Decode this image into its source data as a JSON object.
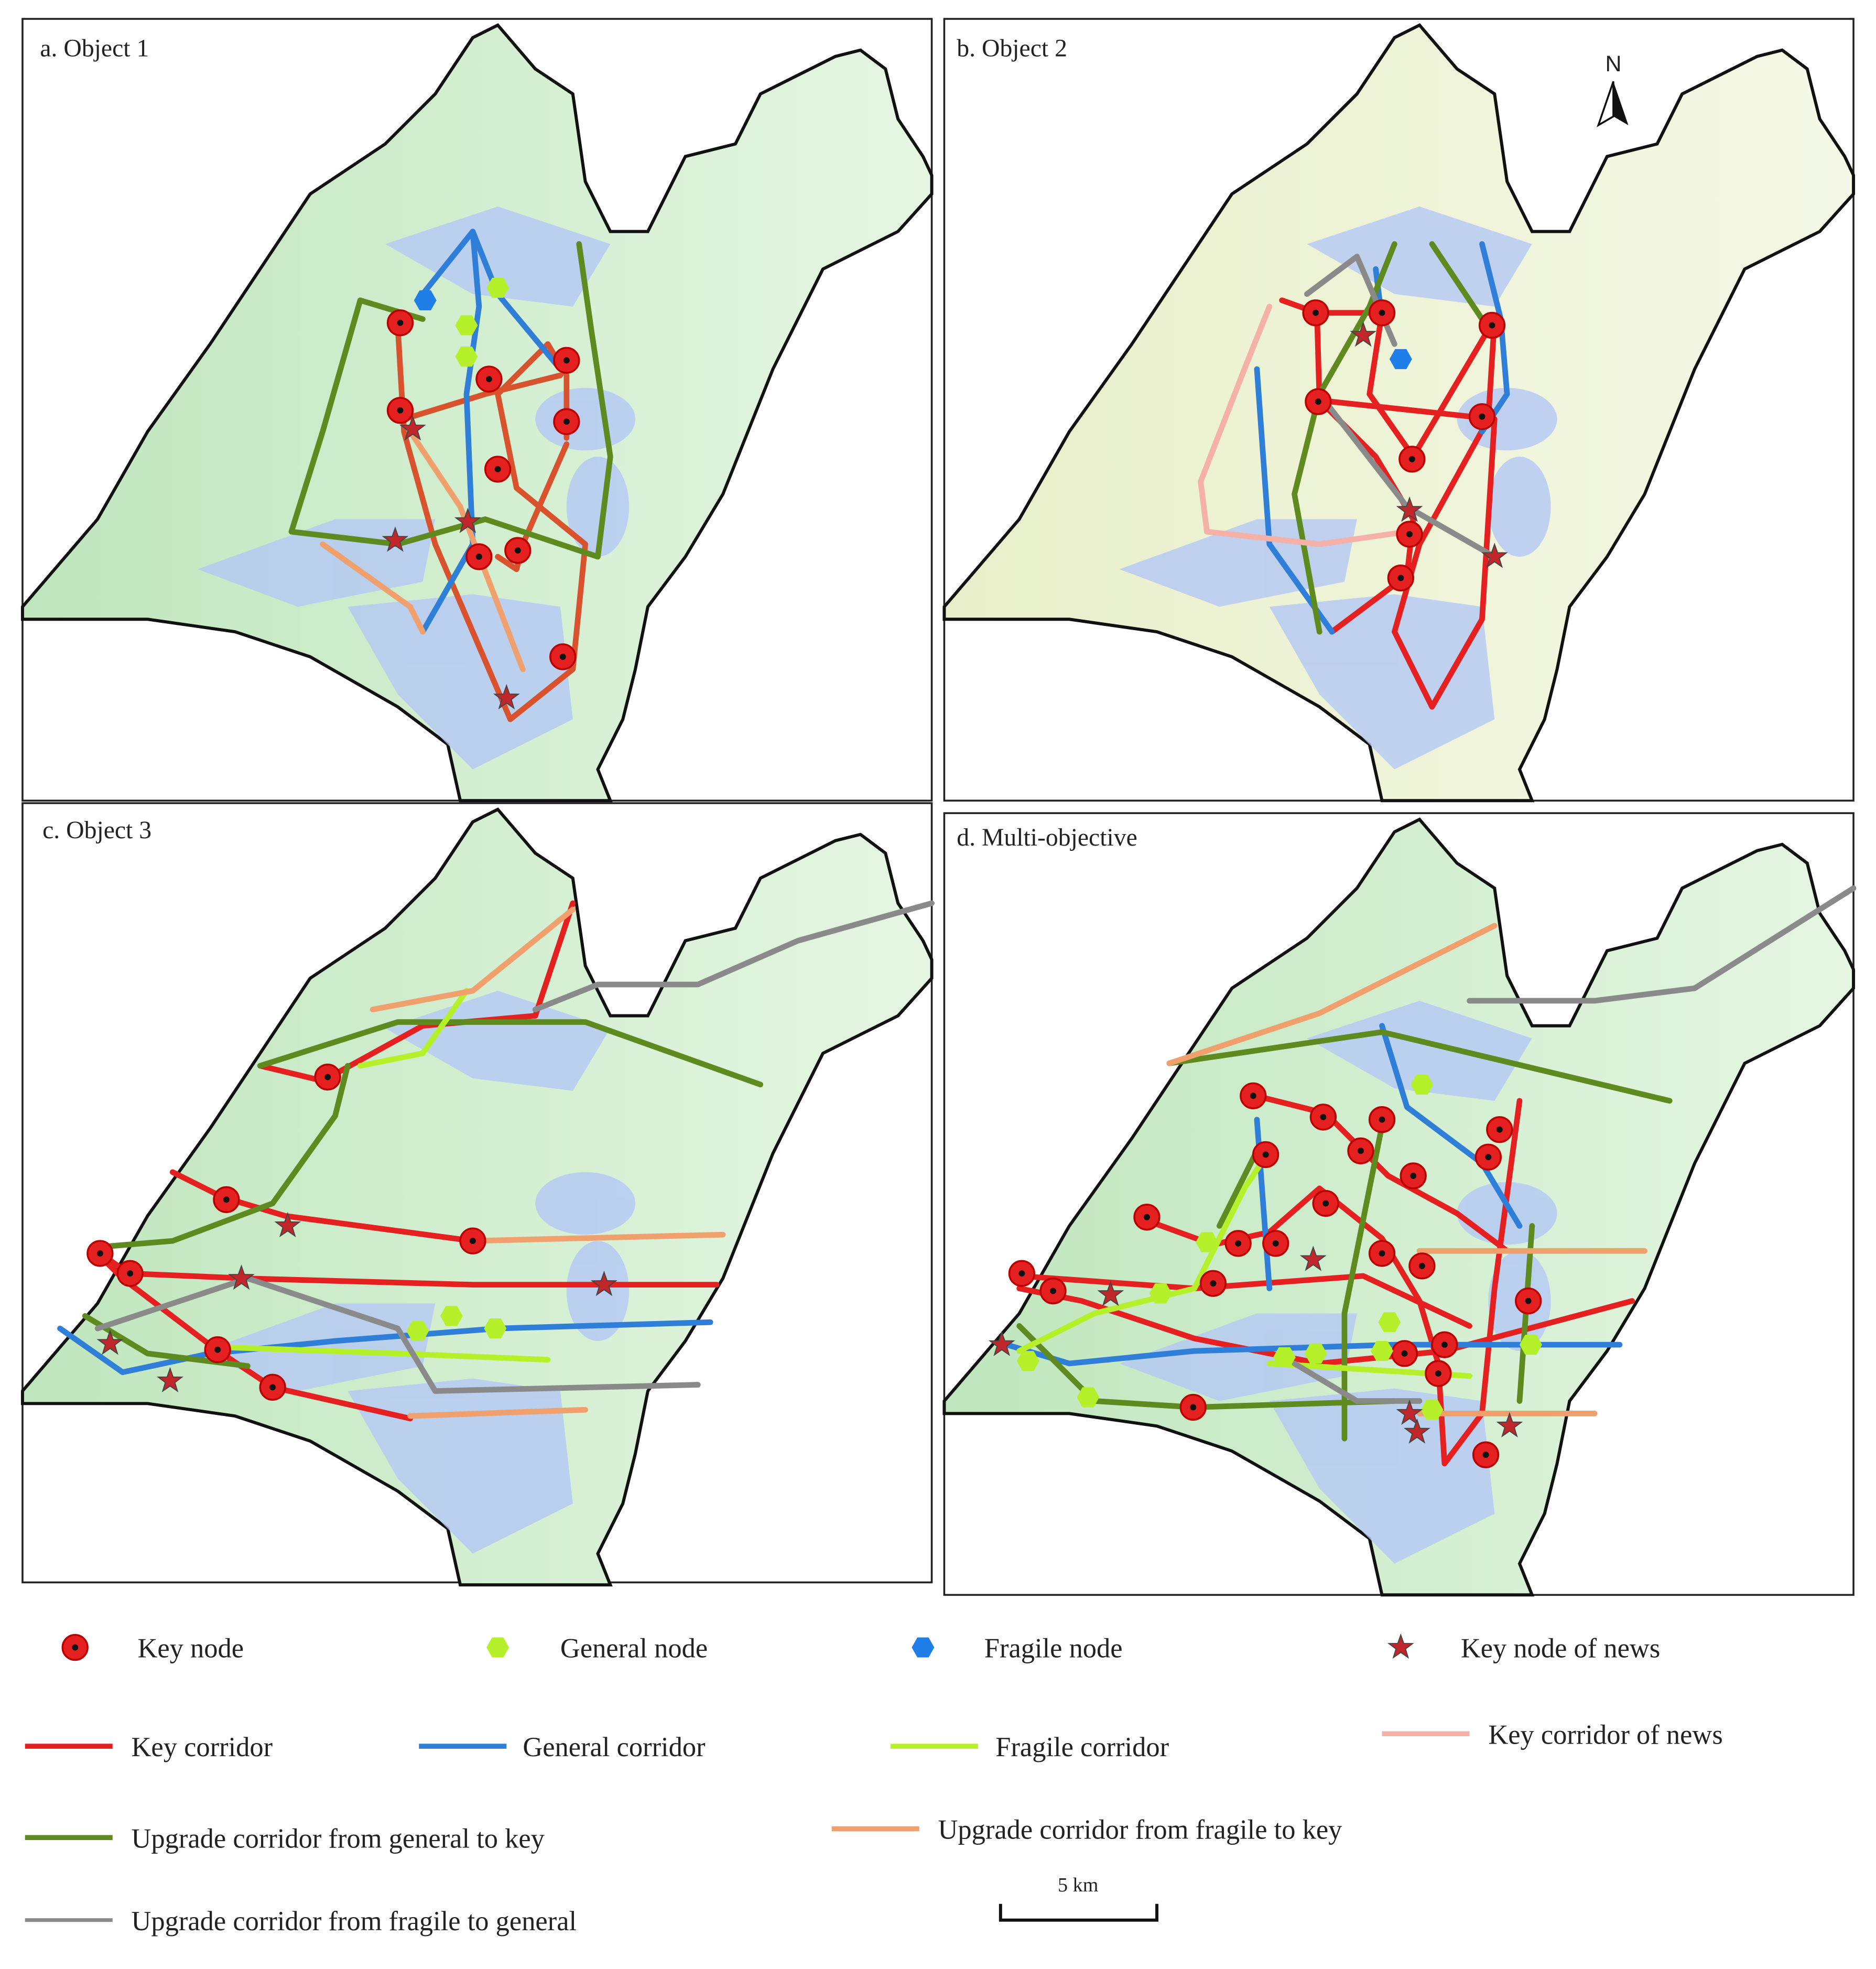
{
  "panels": [
    {
      "title": "a. Object 1"
    },
    {
      "title": "b. Object 2"
    },
    {
      "title": "c. Object 3"
    },
    {
      "title": "d. Multi-objective"
    }
  ],
  "north_arrow": "N",
  "legend": {
    "items": [
      "Key node",
      "General node",
      "Fragile node",
      "Key node of news",
      "Key corridor",
      "General corridor",
      "Fragile corridor",
      "Key corridor of news",
      "Upgrade corridor from general to key",
      "Upgrade corridor from fragile to key",
      "Upgrade corridor from fragile to general"
    ]
  },
  "scale_bar": "5 km"
}
